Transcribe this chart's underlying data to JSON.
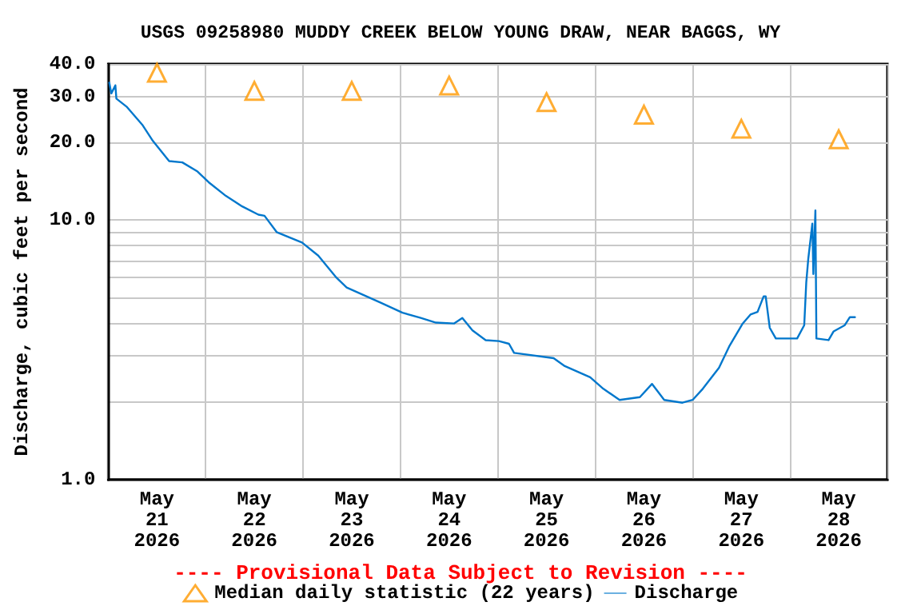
{
  "chart_data": {
    "type": "line",
    "title": "USGS 09258980 MUDDY CREEK BELOW YOUNG DRAW, NEAR BAGGS, WY",
    "ylabel": "Discharge, cubic feet per second",
    "annotations": [
      "---- Provisional Data Subject to Revision ----"
    ],
    "log": "y",
    "grid": true,
    "legend": "bottom",
    "xlim": [
      "2026-05-21T00:00",
      "2026-05-29T00:00"
    ],
    "xticks": [
      {
        "value": "2026-05-21T00:00",
        "label": null
      },
      {
        "value": "2026-05-21T12:00",
        "label": "May\n21\n2026"
      },
      {
        "value": "2026-05-22T00:00",
        "label": null
      },
      {
        "value": "2026-05-22T12:00",
        "label": "May\n22\n2026"
      },
      {
        "value": "2026-05-23T00:00",
        "label": null
      },
      {
        "value": "2026-05-23T12:00",
        "label": "May\n23\n2026"
      },
      {
        "value": "2026-05-24T00:00",
        "label": null
      },
      {
        "value": "2026-05-24T12:00",
        "label": "May\n24\n2026"
      },
      {
        "value": "2026-05-25T00:00",
        "label": null
      },
      {
        "value": "2026-05-25T12:00",
        "label": "May\n25\n2026"
      },
      {
        "value": "2026-05-26T00:00",
        "label": null
      },
      {
        "value": "2026-05-26T12:00",
        "label": "May\n26\n2026"
      },
      {
        "value": "2026-05-27T00:00",
        "label": null
      },
      {
        "value": "2026-05-27T12:00",
        "label": "May\n27\n2026"
      },
      {
        "value": "2026-05-28T00:00",
        "label": null
      },
      {
        "value": "2026-05-28T12:00",
        "label": "May\n28\n2026"
      },
      {
        "value": "2026-05-29T00:00",
        "label": null
      }
    ],
    "ylim": [
      1,
      40
    ],
    "yticks": [
      {
        "value": 1,
        "label": "1.0"
      },
      {
        "value": 2,
        "label": null
      },
      {
        "value": 3,
        "label": null
      },
      {
        "value": 4,
        "label": null
      },
      {
        "value": 5,
        "label": null
      },
      {
        "value": 6,
        "label": null
      },
      {
        "value": 7,
        "label": null
      },
      {
        "value": 8,
        "label": null
      },
      {
        "value": 9,
        "label": null
      },
      {
        "value": 10,
        "label": "10.0"
      },
      {
        "value": 20,
        "label": "20.0"
      },
      {
        "value": 30,
        "label": "30.0"
      },
      {
        "value": 40,
        "label": "40.0"
      }
    ],
    "series": [
      {
        "name": "Median daily statistic (22 years)",
        "type": "scatter",
        "marker": "triangle",
        "color": "#ff9900",
        "x": [
          "2026-05-21T12:00",
          "2026-05-22T12:00",
          "2026-05-23T12:00",
          "2026-05-24T12:00",
          "2026-05-25T12:00",
          "2026-05-26T12:00",
          "2026-05-27T12:00",
          "2026-05-28T12:00"
        ],
        "values": [
          37,
          31.5,
          31.5,
          33,
          28.5,
          25.5,
          22.5,
          20.5
        ]
      },
      {
        "name": "Discharge",
        "marker": "none",
        "color": "#0077cc",
        "x": [
          "2026-05-21T00:15",
          "2026-05-21T00:45",
          "2026-05-21T01:45",
          "2026-05-21T02:00",
          "2026-05-21T04:30",
          "2026-05-21T08:30",
          "2026-05-21T11:00",
          "2026-05-21T15:00",
          "2026-05-21T18:15",
          "2026-05-21T22:00",
          "2026-05-22T00:45",
          "2026-05-22T05:00",
          "2026-05-22T09:00",
          "2026-05-22T13:00",
          "2026-05-22T14:30",
          "2026-05-22T17:30",
          "2026-05-22T20:30",
          "2026-05-22T23:45",
          "2026-05-23T03:45",
          "2026-05-23T08:15",
          "2026-05-23T10:45",
          "2026-05-23T15:30",
          "2026-05-23T19:15",
          "2026-05-24T00:30",
          "2026-05-24T05:00",
          "2026-05-24T08:45",
          "2026-05-24T13:15",
          "2026-05-24T15:15",
          "2026-05-24T17:45",
          "2026-05-24T21:00",
          "2026-05-25T00:15",
          "2026-05-25T02:45",
          "2026-05-25T04:00",
          "2026-05-25T13:45",
          "2026-05-25T16:30",
          "2026-05-25T22:45",
          "2026-05-26T02:00",
          "2026-05-26T06:00",
          "2026-05-26T11:00",
          "2026-05-26T14:00",
          "2026-05-26T17:00",
          "2026-05-26T21:30",
          "2026-05-27T00:00",
          "2026-05-27T02:30",
          "2026-05-27T06:30",
          "2026-05-27T09:00",
          "2026-05-27T12:15",
          "2026-05-27T14:15",
          "2026-05-27T16:00",
          "2026-05-27T17:30",
          "2026-05-27T18:00",
          "2026-05-27T19:00",
          "2026-05-27T20:30",
          "2026-05-28T01:45",
          "2026-05-28T03:30",
          "2026-05-28T04:00",
          "2026-05-28T04:30",
          "2026-05-28T05:30",
          "2026-05-28T05:45",
          "2026-05-28T06:15",
          "2026-05-28T06:30",
          "2026-05-28T09:30",
          "2026-05-28T10:45",
          "2026-05-28T13:30",
          "2026-05-28T14:45",
          "2026-05-28T16:00"
        ],
        "values": [
          33.9,
          30.8,
          33.1,
          29.4,
          27.4,
          23.2,
          20.2,
          16.9,
          16.7,
          15.4,
          14.0,
          12.4,
          11.3,
          10.5,
          10.4,
          9.0,
          8.6,
          8.2,
          7.3,
          6.0,
          5.5,
          5.1,
          4.8,
          4.4,
          4.2,
          4.03,
          4.0,
          4.2,
          3.76,
          3.45,
          3.42,
          3.34,
          3.08,
          2.94,
          2.74,
          2.48,
          2.24,
          2.03,
          2.08,
          2.34,
          2.03,
          1.98,
          2.03,
          2.24,
          2.7,
          3.26,
          3.98,
          4.33,
          4.43,
          5.09,
          5.09,
          3.85,
          3.5,
          3.5,
          3.94,
          5.75,
          7.1,
          9.7,
          6.2,
          10.9,
          3.5,
          3.45,
          3.73,
          3.94,
          4.23,
          4.23
        ]
      }
    ]
  }
}
